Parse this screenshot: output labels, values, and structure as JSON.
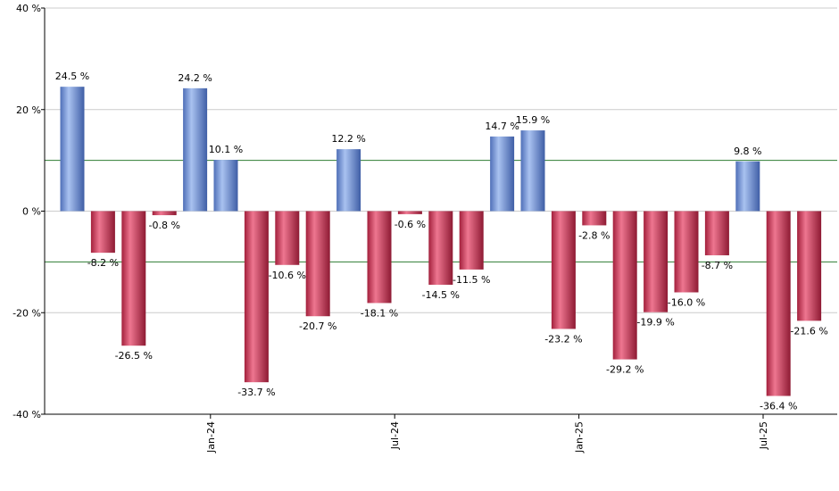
{
  "chart_data": {
    "type": "bar",
    "y_unit_suffix": " %",
    "ylim": [
      -40,
      40
    ],
    "y_ticks": [
      40,
      20,
      0,
      -20,
      -40
    ],
    "y_tick_labels": [
      "40 %",
      "20 %",
      "0 %",
      "-20 %",
      "-40 %"
    ],
    "grid": true,
    "reference_lines": [
      10,
      -10
    ],
    "x_tick_labels": [
      {
        "label": "Jan-24",
        "after_index": 4
      },
      {
        "label": "Jul-24",
        "after_index": 10
      },
      {
        "label": "Jan-25",
        "after_index": 16
      },
      {
        "label": "Jul-25",
        "after_index": 22
      }
    ],
    "values": [
      24.5,
      -8.2,
      -26.5,
      -0.8,
      24.2,
      10.1,
      -33.7,
      -10.6,
      -20.7,
      12.2,
      -18.1,
      -0.6,
      -14.5,
      -11.5,
      14.7,
      15.9,
      -23.2,
      -2.8,
      -29.2,
      -19.9,
      -16.0,
      -8.7,
      9.8,
      -36.4,
      -21.6
    ],
    "value_labels": [
      "24.5 %",
      "-8.2 %",
      "-26.5 %",
      "-0.8 %",
      "24.2 %",
      "10.1 %",
      "-33.7 %",
      "-10.6 %",
      "-20.7 %",
      "12.2 %",
      "-18.1 %",
      "-0.6 %",
      "-14.5 %",
      "-11.5 %",
      "14.7 %",
      "15.9 %",
      "-23.2 %",
      "-2.8 %",
      "-29.2 %",
      "-19.9 %",
      "-16.0 %",
      "-8.7 %",
      "9.8 %",
      "-36.4 %",
      "-21.6 %"
    ],
    "colors": {
      "positive": "#6b8fd6",
      "negative": "#c8324f",
      "reference_line": "#2e7d32",
      "grid": "#cccccc",
      "axis": "#000000"
    }
  }
}
